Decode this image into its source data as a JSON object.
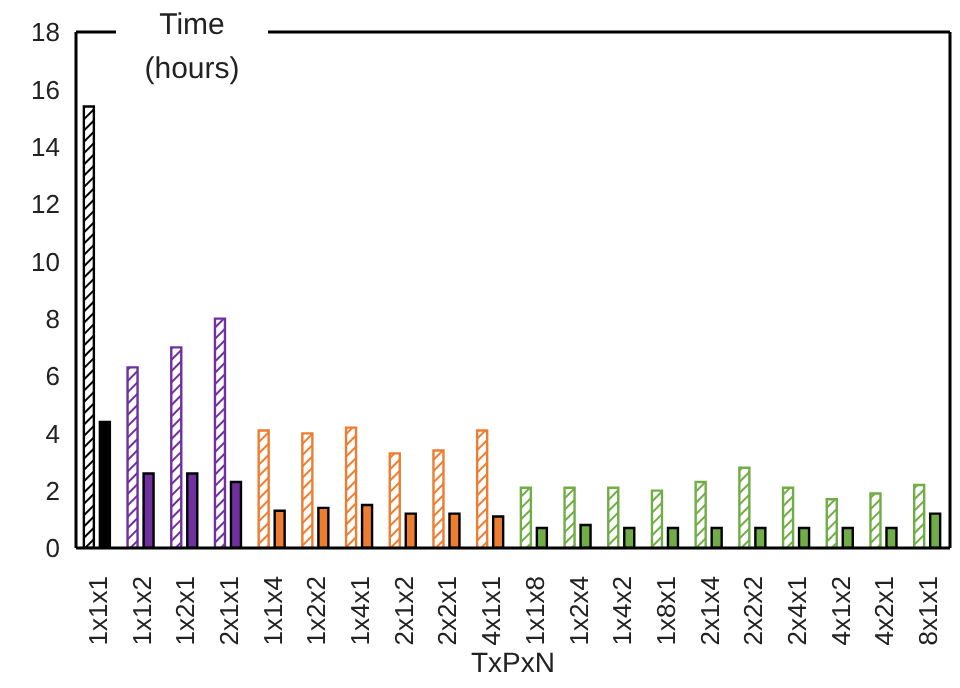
{
  "chart_data": {
    "type": "bar",
    "xlabel": "TxPxN",
    "ylabel": "Time (hours)",
    "categories": [
      "1x1x1",
      "1x1x2",
      "1x2x1",
      "2x1x1",
      "1x1x4",
      "1x2x2",
      "1x4x1",
      "2x1x2",
      "2x2x1",
      "4x1x1",
      "1x1x8",
      "1x2x4",
      "1x4x2",
      "1x8x1",
      "2x1x4",
      "2x2x2",
      "2x4x1",
      "4x1x2",
      "4x2x1",
      "8x1x1"
    ],
    "series": [
      {
        "colors": [
          "#000000",
          "#7030a0",
          "#7030a0",
          "#7030a0",
          "#ed7d31",
          "#ed7d31",
          "#ed7d31",
          "#ed7d31",
          "#ed7d31",
          "#ed7d31",
          "#70ad47",
          "#70ad47",
          "#70ad47",
          "#70ad47",
          "#70ad47",
          "#70ad47",
          "#70ad47",
          "#70ad47",
          "#70ad47",
          "#70ad47"
        ],
        "values": [
          15.4,
          6.3,
          7.0,
          8.0,
          4.1,
          4.0,
          4.2,
          3.3,
          3.4,
          4.1,
          2.1,
          2.1,
          2.1,
          2.0,
          2.3,
          2.8,
          2.1,
          1.7,
          1.9,
          2.2
        ]
      },
      {
        "colors": [
          "#000000",
          "#7030a0",
          "#7030a0",
          "#7030a0",
          "#ed7d31",
          "#ed7d31",
          "#ed7d31",
          "#ed7d31",
          "#ed7d31",
          "#ed7d31",
          "#70ad47",
          "#70ad47",
          "#70ad47",
          "#70ad47",
          "#70ad47",
          "#70ad47",
          "#70ad47",
          "#70ad47",
          "#70ad47",
          "#70ad47"
        ],
        "values": [
          4.4,
          2.6,
          2.6,
          2.3,
          1.3,
          1.4,
          1.5,
          1.2,
          1.2,
          1.1,
          0.7,
          0.8,
          0.7,
          0.7,
          0.7,
          0.7,
          0.7,
          0.7,
          0.7,
          1.2
        ]
      }
    ],
    "ylim": [
      0,
      18
    ],
    "yticks": [
      0,
      2,
      4,
      6,
      8,
      10,
      12,
      14,
      16,
      18
    ]
  }
}
